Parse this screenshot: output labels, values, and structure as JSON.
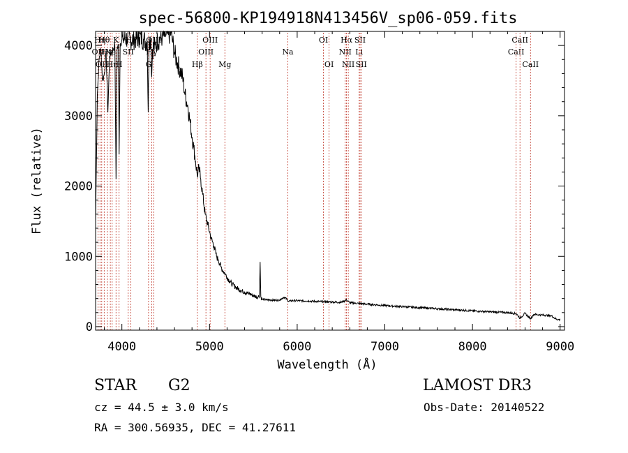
{
  "chart_data": {
    "type": "line",
    "title": "spec-56800-KP194918N413456V_sp06-059.fits",
    "xlabel": "Wavelength (Å)",
    "ylabel": "Flux (relative)",
    "xlim": [
      3700,
      9050
    ],
    "ylim": [
      -50,
      4200
    ],
    "x_ticks": [
      4000,
      5000,
      6000,
      7000,
      8000,
      9000
    ],
    "x_tick_labels": [
      "4000",
      "5000",
      "6000",
      "7000",
      "8000",
      "9000"
    ],
    "y_ticks": [
      0,
      1000,
      2000,
      3000,
      4000
    ],
    "y_tick_labels": [
      "0",
      "1000",
      "2000",
      "3000",
      "4000"
    ],
    "series": [
      {
        "name": "flux",
        "color": "#000000",
        "x": [
          3700,
          3720,
          3740,
          3760,
          3780,
          3800,
          3820,
          3840,
          3860,
          3880,
          3900,
          3920,
          3933,
          3945,
          3960,
          3968,
          3980,
          4000,
          4030,
          4060,
          4100,
          4150,
          4200,
          4250,
          4290,
          4300,
          4310,
          4330,
          4340,
          4350,
          4380,
          4400,
          4430,
          4460,
          4500,
          4530,
          4560,
          4580,
          4600,
          4620,
          4650,
          4680,
          4700,
          4720,
          4750,
          4780,
          4800,
          4820,
          4840,
          4861,
          4880,
          4900,
          4920,
          4950,
          4980,
          5000,
          5020,
          5050,
          5080,
          5100,
          5130,
          5160,
          5180,
          5200,
          5230,
          5260,
          5300,
          5350,
          5400,
          5450,
          5500,
          5550,
          5570,
          5577,
          5585,
          5600,
          5650,
          5700,
          5750,
          5800,
          5850,
          5890,
          5900,
          5950,
          6000,
          6100,
          6200,
          6300,
          6400,
          6500,
          6563,
          6600,
          6700,
          6800,
          6900,
          7000,
          7200,
          7400,
          7600,
          7800,
          8000,
          8200,
          8400,
          8500,
          8542,
          8600,
          8662,
          8700,
          8800,
          8900,
          8950,
          9000
        ],
        "values": [
          1500,
          3300,
          3800,
          3950,
          3500,
          3600,
          3900,
          3050,
          3850,
          3900,
          3950,
          4000,
          2100,
          3950,
          4000,
          2450,
          4020,
          4080,
          4100,
          4100,
          4080,
          4090,
          4120,
          4080,
          4050,
          3050,
          4100,
          4080,
          3550,
          3950,
          4000,
          4050,
          4100,
          4120,
          4150,
          4150,
          4180,
          4050,
          3900,
          3800,
          3700,
          3600,
          3500,
          3300,
          3150,
          2900,
          2700,
          2550,
          2350,
          2150,
          2250,
          2100,
          1900,
          1600,
          1450,
          1350,
          1250,
          1150,
          1000,
          950,
          850,
          780,
          750,
          700,
          650,
          600,
          560,
          520,
          490,
          470,
          440,
          420,
          450,
          920,
          420,
          390,
          380,
          380,
          375,
          380,
          420,
          380,
          360,
          370,
          370,
          365,
          360,
          355,
          350,
          345,
          380,
          340,
          330,
          320,
          310,
          300,
          285,
          270,
          255,
          240,
          225,
          210,
          200,
          185,
          120,
          190,
          110,
          175,
          165,
          155,
          110,
          95
        ]
      }
    ],
    "lines": [
      {
        "wavelength": 3727,
        "label": "OII",
        "row": 2
      },
      {
        "wavelength": 3750,
        "label": "Hη",
        "row": 1
      },
      {
        "wavelength": 3770,
        "label": "OII",
        "row": 3
      },
      {
        "wavelength": 3798,
        "label": "Hθ",
        "row": 1
      },
      {
        "wavelength": 3835,
        "label": "Hη",
        "row": 2
      },
      {
        "wavelength": 3868,
        "label": "Ne",
        "row": 2
      },
      {
        "wavelength": 3889,
        "label": "Hη",
        "row": 3
      },
      {
        "wavelength": 3933,
        "label": "K",
        "row": 1
      },
      {
        "wavelength": 3968,
        "label": "H",
        "row": 3
      },
      {
        "wavelength": 4072,
        "label": "SII",
        "row": 2
      },
      {
        "wavelength": 4102,
        "label": "Hδ",
        "row": 1
      },
      {
        "wavelength": 4304,
        "label": "G",
        "row": 3
      },
      {
        "wavelength": 4340,
        "label": "Hγ",
        "row": 2
      },
      {
        "wavelength": 4363,
        "label": "OIII",
        "row": 1
      },
      {
        "wavelength": 4861,
        "label": "Hβ",
        "row": 3
      },
      {
        "wavelength": 4959,
        "label": "OIII",
        "row": 2
      },
      {
        "wavelength": 5007,
        "label": "OIII",
        "row": 1
      },
      {
        "wavelength": 5175,
        "label": "Mg",
        "row": 3
      },
      {
        "wavelength": 5893,
        "label": "Na",
        "row": 2
      },
      {
        "wavelength": 6300,
        "label": "OI",
        "row": 1
      },
      {
        "wavelength": 6364,
        "label": "OI",
        "row": 3
      },
      {
        "wavelength": 6548,
        "label": "NII",
        "row": 2
      },
      {
        "wavelength": 6563,
        "label": "Hα",
        "row": 1
      },
      {
        "wavelength": 6583,
        "label": "NII",
        "row": 3
      },
      {
        "wavelength": 6707,
        "label": "Li",
        "row": 2
      },
      {
        "wavelength": 6717,
        "label": "SII",
        "row": 1
      },
      {
        "wavelength": 6731,
        "label": "SII",
        "row": 3
      },
      {
        "wavelength": 8498,
        "label": "CaII",
        "row": 2
      },
      {
        "wavelength": 8542,
        "label": "CaII",
        "row": 1
      },
      {
        "wavelength": 8662,
        "label": "CaII",
        "row": 3
      }
    ]
  },
  "info": {
    "class_text": "STAR",
    "subclass_text": "G2",
    "cz_text": "cz = 44.5 ± 3.0 km/s",
    "coords_text": "RA = 300.56935, DEC =  41.27611",
    "survey_text": "LAMOST DR3",
    "obsdate_text": "Obs-Date: 20140522"
  },
  "colors": {
    "line_marker": "#c0392b",
    "spectrum": "#000000"
  }
}
